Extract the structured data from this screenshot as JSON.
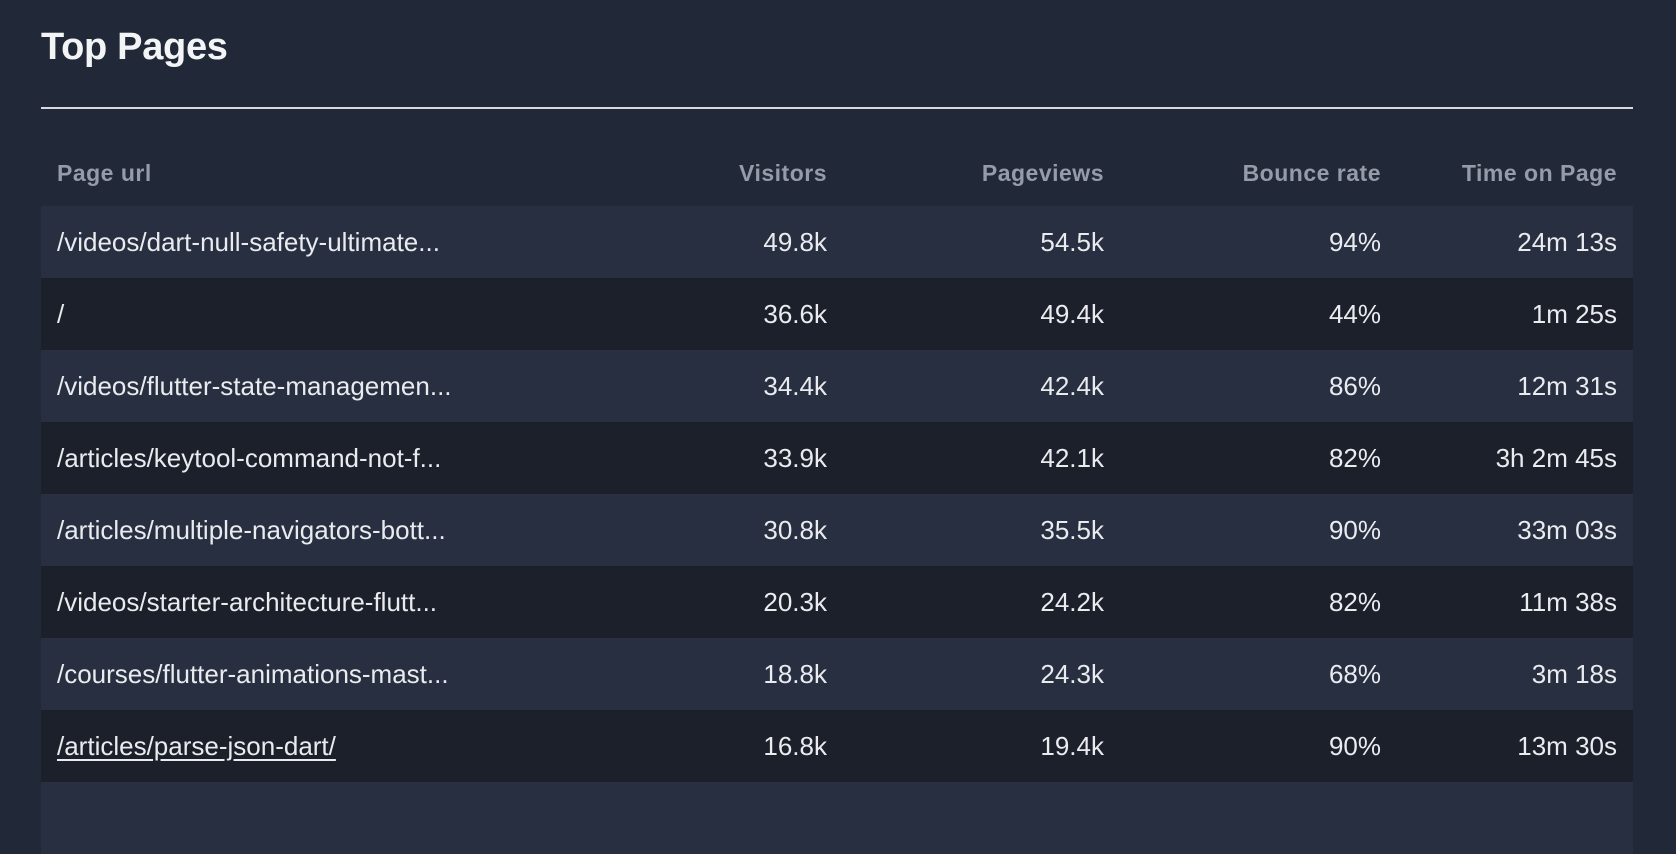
{
  "title": "Top Pages",
  "colors": {
    "background": "#212938",
    "row_odd": "#272f40",
    "row_even": "#1b202b",
    "header_text": "#959ba8",
    "cell_text": "#e9ebef",
    "divider": "#d7dae0"
  },
  "table": {
    "columns": [
      "Page url",
      "Visitors",
      "Pageviews",
      "Bounce rate",
      "Time on Page"
    ],
    "rows": [
      {
        "url": "/videos/dart-null-safety-ultimate...",
        "visitors": "49.8k",
        "pageviews": "54.5k",
        "bounce": "94%",
        "time": "24m 13s"
      },
      {
        "url": "/",
        "visitors": "36.6k",
        "pageviews": "49.4k",
        "bounce": "44%",
        "time": "1m 25s"
      },
      {
        "url": "/videos/flutter-state-managemen...",
        "visitors": "34.4k",
        "pageviews": "42.4k",
        "bounce": "86%",
        "time": "12m 31s"
      },
      {
        "url": "/articles/keytool-command-not-f...",
        "visitors": "33.9k",
        "pageviews": "42.1k",
        "bounce": "82%",
        "time": "3h 2m 45s"
      },
      {
        "url": "/articles/multiple-navigators-bott...",
        "visitors": "30.8k",
        "pageviews": "35.5k",
        "bounce": "90%",
        "time": "33m 03s"
      },
      {
        "url": "/videos/starter-architecture-flutt...",
        "visitors": "20.3k",
        "pageviews": "24.2k",
        "bounce": "82%",
        "time": "11m 38s"
      },
      {
        "url": "/courses/flutter-animations-mast...",
        "visitors": "18.8k",
        "pageviews": "24.3k",
        "bounce": "68%",
        "time": "3m 18s"
      },
      {
        "url": "/articles/parse-json-dart/",
        "visitors": "16.8k",
        "pageviews": "19.4k",
        "bounce": "90%",
        "time": "13m 30s",
        "hovered": true
      },
      {
        "url": "",
        "visitors": "",
        "pageviews": "",
        "bounce": "",
        "time": ""
      }
    ]
  }
}
